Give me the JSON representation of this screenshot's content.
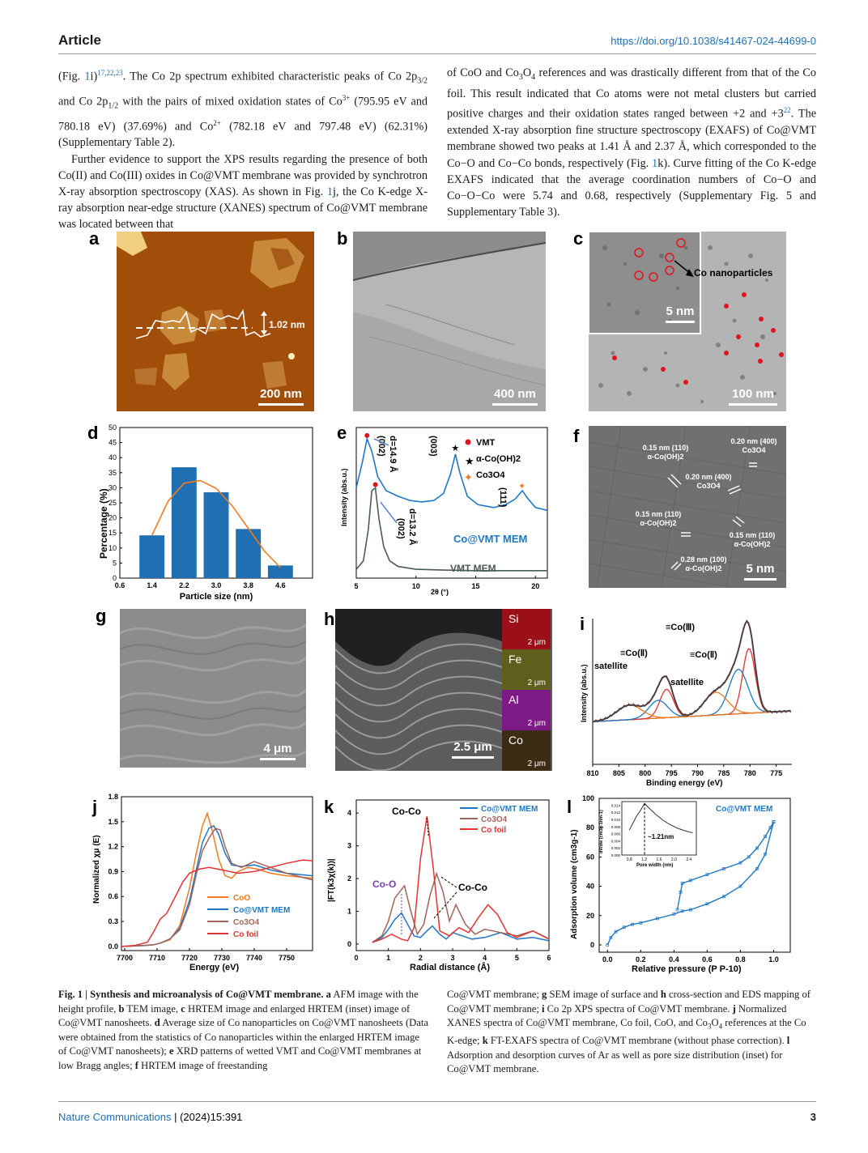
{
  "header": {
    "section": "Article",
    "doi": "https://doi.org/10.1038/s41467-024-44699-0"
  },
  "body_text": {
    "left_p1": "(Fig. 1i)17,22,23. The Co 2p spectrum exhibited characteristic peaks of Co 2p3/2 and Co 2p1/2 with the pairs of mixed oxidation states of Co3+ (795.95 eV and 780.18 eV) (37.69%) and Co2+ (782.18 eV and 797.48 eV) (62.31%) (Supplementary Table 2).",
    "left_p2": "Further evidence to support the XPS results regarding the presence of both Co(II) and Co(III) oxides in Co@VMT membrane was provided by synchrotron X-ray absorption spectroscopy (XAS). As shown in Fig. 1j, the Co K-edge X-ray absorption near-edge structure (XANES) spectrum of Co@VMT membrane was located between that",
    "right_p1": "of CoO and Co3O4 references and was drastically different from that of the Co foil. This result indicated that Co atoms were not metal clusters but carried positive charges and their oxidation states ranged between +2 and +322. The extended X-ray absorption fine structure spectroscopy (EXAFS) of Co@VMT membrane showed two peaks at 1.41 Å and 2.37 Å, which corresponded to the Co−O and Co−Co bonds, respectively (Fig. 1k). Curve fitting of the Co K-edge EXAFS indicated that the average coordination numbers of Co−O and Co−O−Co were 5.74 and 0.68, respectively (Supplementary Fig. 5 and Supplementary Table 3)."
  },
  "panels": {
    "a": {
      "label": "a",
      "height_label": "1.02 nm",
      "scale": "200 nm"
    },
    "b": {
      "label": "b",
      "scale": "400 nm"
    },
    "c": {
      "label": "c",
      "inset_scale": "5 nm",
      "annotation": "Co nanoparticles",
      "scale": "100 nm"
    },
    "d": {
      "label": "d"
    },
    "e": {
      "label": "e"
    },
    "f": {
      "label": "f",
      "scale": "5 nm",
      "annotations": [
        "0.15 nm (110)",
        "α-Co(OH)2",
        "0.20 nm (400)",
        "Co3O4",
        "0.20 nm (400)",
        "Co3O4",
        "0.15 nm (110)",
        "α-Co(OH)2",
        "0.15 nm (110)",
        "α-Co(OH)2",
        "0.28 nm (100)",
        "α-Co(OH)2"
      ]
    },
    "g": {
      "label": "g",
      "scale": "4 μm"
    },
    "h": {
      "label": "h",
      "scale": "2.5 μm",
      "eds": [
        {
          "element": "Si",
          "scale": "2 μm",
          "color": "#b4141e"
        },
        {
          "element": "Fe",
          "scale": "2 μm",
          "color": "#7c7a20"
        },
        {
          "element": "Al",
          "scale": "2 μm",
          "color": "#9a1ca0"
        },
        {
          "element": "Co",
          "scale": "2 μm",
          "color": "#6a4a1e"
        }
      ]
    },
    "i": {
      "label": "i"
    },
    "j": {
      "label": "j"
    },
    "k": {
      "label": "k"
    },
    "l": {
      "label": "l"
    }
  },
  "chart_data": [
    {
      "panel": "d",
      "type": "bar",
      "xlabel": "Particle size (nm)",
      "ylabel": "Percentage (%)",
      "categories": [
        "1.4",
        "2.2",
        "3.0",
        "3.8",
        "4.6"
      ],
      "values": [
        14.2,
        36.8,
        28.5,
        16.3,
        4.2
      ],
      "fit_curve": [
        [
          1.4,
          14.2
        ],
        [
          1.8,
          25.5
        ],
        [
          2.2,
          31.5
        ],
        [
          2.6,
          32.4
        ],
        [
          3.0,
          29.8
        ],
        [
          3.4,
          24.0
        ],
        [
          3.8,
          16.5
        ],
        [
          4.2,
          9.0
        ],
        [
          4.6,
          3.5
        ]
      ],
      "xticks": [
        "0.6",
        "1.4",
        "2.2",
        "3.0",
        "3.8",
        "4.6"
      ],
      "yticks": [
        "0",
        "5",
        "10",
        "15",
        "20",
        "25",
        "30",
        "35",
        "40",
        "45",
        "50"
      ],
      "xlim": [
        0.6,
        5.4
      ],
      "ylim": [
        0,
        50
      ]
    },
    {
      "panel": "e",
      "type": "line",
      "xlabel": "2θ (°)",
      "ylabel": "Intensity (abs.u.)",
      "xticks": [
        "5",
        "10",
        "15",
        "20"
      ],
      "xlim": [
        5,
        21
      ],
      "legend": [
        "VMT",
        "α-Co(OH)2",
        "Co3O4"
      ],
      "series": [
        {
          "name": "Co@VMT MEM",
          "color": "#1f77c4",
          "x": [
            5,
            5.5,
            5.9,
            6.3,
            6.8,
            7.5,
            8.5,
            9.5,
            10.5,
            11.5,
            12.3,
            12.9,
            13.3,
            13.7,
            14.3,
            15.2,
            16.5,
            17.5,
            18.3,
            18.9,
            19.4,
            20,
            21
          ],
          "y": [
            0.62,
            0.8,
            0.97,
            0.88,
            0.7,
            0.6,
            0.56,
            0.53,
            0.52,
            0.53,
            0.58,
            0.72,
            0.86,
            0.72,
            0.56,
            0.5,
            0.48,
            0.5,
            0.54,
            0.6,
            0.54,
            0.48,
            0.46
          ]
        },
        {
          "name": "VMT MEM",
          "color": "#4a5a58",
          "x": [
            5,
            5.6,
            6.0,
            6.3,
            6.6,
            6.9,
            7.3,
            7.8,
            8.5,
            10,
            12,
            15,
            18,
            21
          ],
          "y": [
            0.04,
            0.1,
            0.32,
            0.6,
            0.62,
            0.4,
            0.2,
            0.1,
            0.06,
            0.04,
            0.035,
            0.03,
            0.03,
            0.03
          ]
        }
      ],
      "annotations": [
        "d=14.9 Å",
        "(002)",
        "(003)",
        "(111)",
        "d=13.2 Å",
        "(002)"
      ]
    },
    {
      "panel": "i",
      "type": "line",
      "xlabel": "Binding energy (eV)",
      "ylabel": "Intensity (abs.u.)",
      "xticks": [
        "810",
        "805",
        "800",
        "795",
        "790",
        "785",
        "780",
        "775"
      ],
      "xlim": [
        810,
        772
      ],
      "labels": [
        "≡Co(Ⅲ)",
        "≡Co(Ⅱ)",
        "≡Co(Ⅱ)",
        "satellite",
        "satellite"
      ]
    },
    {
      "panel": "j",
      "type": "line",
      "xlabel": "Energy (eV)",
      "ylabel": "Normalized χμ (E)",
      "xticks": [
        "7700",
        "7710",
        "7720",
        "7730",
        "7740",
        "7750"
      ],
      "yticks": [
        "0.0",
        "0.3",
        "0.6",
        "0.9",
        "1.2",
        "1.5",
        "1.8"
      ],
      "xlim": [
        7699,
        7758
      ],
      "ylim": [
        -0.05,
        1.8
      ],
      "series": [
        {
          "name": "CoO",
          "color": "#f07a20",
          "x": [
            7699,
            7706,
            7709,
            7711,
            7714,
            7717,
            7720,
            7722,
            7724,
            7725.5,
            7727,
            7729,
            7731,
            7733,
            7735,
            7738,
            7741,
            7745,
            7750,
            7758
          ],
          "y": [
            0.0,
            0.01,
            0.02,
            0.04,
            0.08,
            0.25,
            0.7,
            1.1,
            1.45,
            1.6,
            1.4,
            1.05,
            0.85,
            0.82,
            0.9,
            0.95,
            0.93,
            0.88,
            0.85,
            0.82
          ]
        },
        {
          "name": "Co@VMT MEM",
          "color": "#1f77c4",
          "x": [
            7699,
            7706,
            7709,
            7711,
            7714,
            7717,
            7720,
            7722,
            7724,
            7726,
            7727.5,
            7729,
            7731,
            7733,
            7736,
            7740,
            7745,
            7750,
            7758
          ],
          "y": [
            0.0,
            0.01,
            0.02,
            0.04,
            0.09,
            0.22,
            0.55,
            0.9,
            1.25,
            1.42,
            1.45,
            1.35,
            1.12,
            0.98,
            0.96,
            0.98,
            0.92,
            0.88,
            0.85
          ]
        },
        {
          "name": "Co3O4",
          "color": "#a0645a",
          "x": [
            7699,
            7706,
            7709,
            7711,
            7714,
            7717,
            7720,
            7722,
            7724,
            7726,
            7728,
            7729.5,
            7731,
            7733,
            7736,
            7740,
            7745,
            7750,
            7758
          ],
          "y": [
            0.0,
            0.01,
            0.02,
            0.04,
            0.09,
            0.2,
            0.5,
            0.85,
            1.15,
            1.3,
            1.42,
            1.4,
            1.2,
            1.0,
            0.95,
            1.02,
            0.95,
            0.88,
            0.8
          ]
        },
        {
          "name": "Co foil",
          "color": "#e03434",
          "x": [
            7699,
            7703,
            7707,
            7709,
            7711,
            7713,
            7715,
            7718,
            7720,
            7723,
            7726,
            7730,
            7735,
            7740,
            7745,
            7750,
            7755,
            7758
          ],
          "y": [
            0.0,
            0.01,
            0.05,
            0.18,
            0.33,
            0.4,
            0.55,
            0.78,
            0.88,
            0.93,
            0.95,
            0.92,
            0.88,
            0.9,
            0.95,
            1.0,
            1.04,
            1.03
          ]
        }
      ]
    },
    {
      "panel": "k",
      "type": "line",
      "xlabel": "Radial distance (Å)",
      "ylabel": "|FT(k3χ(k))|",
      "xticks": [
        "0",
        "1",
        "2",
        "3",
        "4",
        "5",
        "6"
      ],
      "yticks": [
        "0",
        "1",
        "2",
        "3",
        "4"
      ],
      "xlim": [
        0,
        6
      ],
      "ylim": [
        -0.2,
        4.4
      ],
      "annotations": [
        "Co-Co",
        "Co-O",
        "Co-Co"
      ],
      "series": [
        {
          "name": "Co@VMT MEM",
          "color": "#1f77c4",
          "x": [
            0.5,
            0.8,
            1.0,
            1.2,
            1.41,
            1.6,
            1.8,
            2.0,
            2.2,
            2.37,
            2.6,
            2.8,
            3.0,
            3.3,
            3.6,
            4.0,
            4.5,
            5.0,
            5.5,
            6.0
          ],
          "y": [
            0.05,
            0.2,
            0.45,
            0.75,
            0.95,
            0.6,
            0.25,
            0.2,
            0.4,
            0.55,
            0.3,
            0.15,
            0.35,
            0.25,
            0.15,
            0.2,
            0.35,
            0.15,
            0.2,
            0.1
          ]
        },
        {
          "name": "Co3O4",
          "color": "#a0645a",
          "x": [
            0.5,
            0.8,
            1.0,
            1.2,
            1.5,
            1.7,
            1.9,
            2.1,
            2.3,
            2.5,
            2.7,
            2.9,
            3.1,
            3.4,
            3.7,
            4.0,
            4.5,
            5.0,
            5.5,
            6.0
          ],
          "y": [
            0.05,
            0.25,
            0.7,
            1.4,
            1.78,
            1.0,
            0.3,
            0.6,
            1.5,
            2.15,
            1.6,
            0.7,
            1.2,
            0.6,
            0.3,
            0.45,
            0.35,
            0.25,
            0.4,
            0.15
          ]
        },
        {
          "name": "Co foil",
          "color": "#e03434",
          "x": [
            0.5,
            0.8,
            1.1,
            1.4,
            1.6,
            1.8,
            2.0,
            2.2,
            2.4,
            2.6,
            2.9,
            3.2,
            3.5,
            3.8,
            4.1,
            4.4,
            4.7,
            5.0,
            5.5,
            6.0
          ],
          "y": [
            0.05,
            0.15,
            0.3,
            0.15,
            0.1,
            0.5,
            2.6,
            3.9,
            2.3,
            0.4,
            0.25,
            0.5,
            0.35,
            0.8,
            1.2,
            0.9,
            0.35,
            0.2,
            0.4,
            0.15
          ]
        }
      ]
    },
    {
      "panel": "l",
      "type": "line",
      "xlabel": "Relative pressure (P P-10)",
      "ylabel": "Adsorption volume (cm3g-1)",
      "xticks": [
        "0.0",
        "0.2",
        "0.4",
        "0.6",
        "0.8",
        "1.0"
      ],
      "yticks": [
        "0",
        "20",
        "40",
        "60",
        "80",
        "100"
      ],
      "xlim": [
        -0.05,
        1.1
      ],
      "ylim": [
        -5,
        100
      ],
      "series": [
        {
          "name": "Co@VMT MEM adsorption",
          "color": "#1f77c4",
          "x": [
            0.0,
            0.02,
            0.05,
            0.1,
            0.15,
            0.2,
            0.3,
            0.4,
            0.45,
            0.5,
            0.6,
            0.7,
            0.8,
            0.9,
            0.95,
            1.0
          ],
          "y": [
            0,
            5,
            9,
            12,
            14,
            15,
            18,
            21,
            23,
            24,
            28,
            33,
            40,
            52,
            62,
            84
          ]
        },
        {
          "name": "Co@VMT MEM desorption",
          "color": "#1f77c4",
          "x": [
            1.0,
            0.98,
            0.95,
            0.9,
            0.85,
            0.8,
            0.7,
            0.6,
            0.5,
            0.45,
            0.44,
            0.42
          ],
          "y": [
            84,
            80,
            74,
            66,
            60,
            56,
            52,
            48,
            44,
            42,
            36,
            24
          ]
        }
      ],
      "inset": {
        "xlabel": "Pore width (nm)",
        "ylabel": "dV/dw (cm3g-1nm-1)",
        "xticks": [
          "0.8",
          "1.2",
          "1.6",
          "2.0",
          "2.4"
        ],
        "yticks": [
          "0.000",
          "0.002",
          "0.004",
          "0.006",
          "0.008",
          "0.010",
          "0.012",
          "0.014"
        ],
        "x": [
          0.8,
          0.9,
          1.0,
          1.1,
          1.21,
          1.3,
          1.5,
          1.7,
          1.9,
          2.1,
          2.3,
          2.5
        ],
        "y": [
          0.007,
          0.009,
          0.011,
          0.0125,
          0.0145,
          0.0135,
          0.0115,
          0.0098,
          0.0085,
          0.0075,
          0.0068,
          0.0062
        ],
        "annotation": "~1.21nm"
      }
    }
  ],
  "caption": {
    "left": "Fig. 1 | Synthesis and microanalysis of Co@VMT membrane. a AFM image with the height profile, b TEM image, c HRTEM image and enlarged HRTEM (inset) image of Co@VMT nanosheets. d Average size of Co nanoparticles on Co@VMT nanosheets (Data were obtained from the statistics of Co nanoparticles within the enlarged HRTEM image of Co@VMT nanosheets); e XRD patterns of wetted VMT and Co@VMT membranes at low Bragg angles; f HRTEM image of freestanding",
    "right": "Co@VMT membrane; g SEM image of surface and h cross-section and EDS mapping of Co@VMT membrane; i Co 2p XPS spectra of Co@VMT membrane. j Normalized XANES spectra of Co@VMT membrane, Co foil, CoO, and Co3O4 references at the Co K-edge; k FT-EXAFS spectra of Co@VMT membrane (without phase correction). l Adsorption and desorption curves of Ar as well as pore size distribution (inset) for Co@VMT membrane."
  },
  "footer": {
    "journal": "Nature Communications",
    "issue": "(2024)15:391",
    "page": "3"
  }
}
